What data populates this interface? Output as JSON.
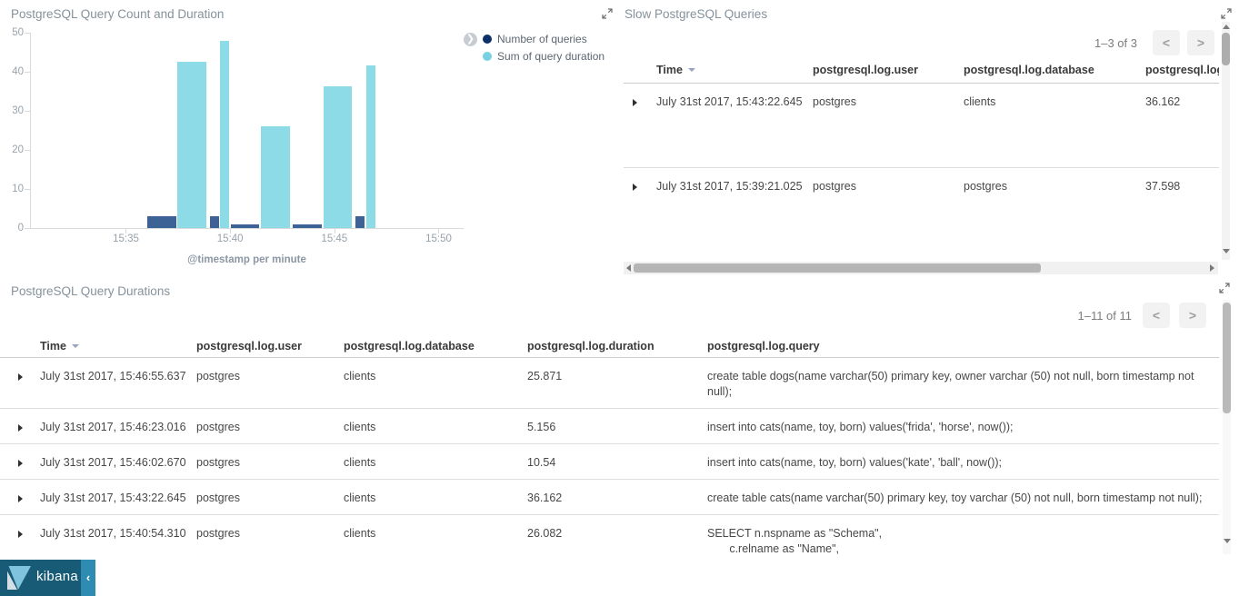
{
  "app": {
    "brand": "kibana",
    "brand_bg": "#175b77",
    "collapse_bg": "#2e8cb3",
    "collapse_icon_glyph": "‹"
  },
  "panels": {
    "chart": {
      "title": "PostgreSQL Query Count and Duration"
    },
    "slow_queries": {
      "title": "Slow PostgreSQL Queries",
      "pagination": {
        "range_label": "1–3 of 3",
        "prev_glyph": "<",
        "next_glyph": ">"
      },
      "columns": [
        "Time",
        "postgresql.log.user",
        "postgresql.log.database",
        "postgresql.log.duration"
      ],
      "rows": [
        {
          "time": "July 31st 2017, 15:43:22.645",
          "user": "postgres",
          "database": "clients",
          "duration": "36.162"
        },
        {
          "time": "July 31st 2017, 15:39:21.025",
          "user": "postgres",
          "database": "postgres",
          "duration": "37.598"
        }
      ]
    },
    "durations": {
      "title": "PostgreSQL Query Durations",
      "pagination": {
        "range_label": "1–11 of 11",
        "prev_glyph": "<",
        "next_glyph": ">"
      },
      "columns": [
        "Time",
        "postgresql.log.user",
        "postgresql.log.database",
        "postgresql.log.duration",
        "postgresql.log.query"
      ],
      "rows": [
        {
          "time": "July 31st 2017, 15:46:55.637",
          "user": "postgres",
          "database": "clients",
          "duration": "25.871",
          "query": "create table dogs(name varchar(50) primary key, owner varchar (50) not null, born timestamp not null);"
        },
        {
          "time": "July 31st 2017, 15:46:23.016",
          "user": "postgres",
          "database": "clients",
          "duration": "5.156",
          "query": "insert into cats(name, toy, born) values('frida', 'horse', now());"
        },
        {
          "time": "July 31st 2017, 15:46:02.670",
          "user": "postgres",
          "database": "clients",
          "duration": "10.54",
          "query": "insert into cats(name, toy, born) values('kate', 'ball', now());"
        },
        {
          "time": "July 31st 2017, 15:43:22.645",
          "user": "postgres",
          "database": "clients",
          "duration": "36.162",
          "query": "create table cats(name varchar(50) primary key, toy varchar (50) not null, born timestamp not null);"
        },
        {
          "time": "July 31st 2017, 15:40:54.310",
          "user": "postgres",
          "database": "clients",
          "duration": "26.082",
          "query": "SELECT n.nspname as \"Schema\",\n       c.relname as \"Name\","
        }
      ]
    }
  },
  "chart_data": {
    "type": "bar",
    "title": "PostgreSQL Query Count and Duration",
    "xlabel": "@timestamp per minute",
    "ylabel": "",
    "ylim": [
      0,
      50
    ],
    "yticks": [
      0,
      10,
      20,
      30,
      40,
      50
    ],
    "x_domain_minutes": [
      30.4,
      51.2
    ],
    "xticks": [
      {
        "minute": 35,
        "label": "15:35"
      },
      {
        "minute": 40,
        "label": "15:40"
      },
      {
        "minute": 45,
        "label": "15:45"
      },
      {
        "minute": 50,
        "label": "15:50"
      }
    ],
    "categories": [
      "15:36",
      "15:39",
      "15:40",
      "15:43",
      "15:46"
    ],
    "bucket_minutes": [
      36,
      39,
      40,
      43,
      46
    ],
    "bar_width_minutes": [
      1.45,
      0.5,
      1.45,
      1.45,
      0.5
    ],
    "grid": false,
    "legend_position": "top-right",
    "series": [
      {
        "name": "Number of queries",
        "legend_color": "#0d2f6a",
        "bar_color": "#3c6296",
        "values": [
          3,
          3,
          1,
          1,
          3
        ]
      },
      {
        "name": "Sum of query duration",
        "legend_color": "#77d1e1",
        "bar_color": "#8edbe8",
        "values": [
          42.6,
          47.9,
          26.1,
          36.2,
          41.6
        ]
      }
    ]
  }
}
